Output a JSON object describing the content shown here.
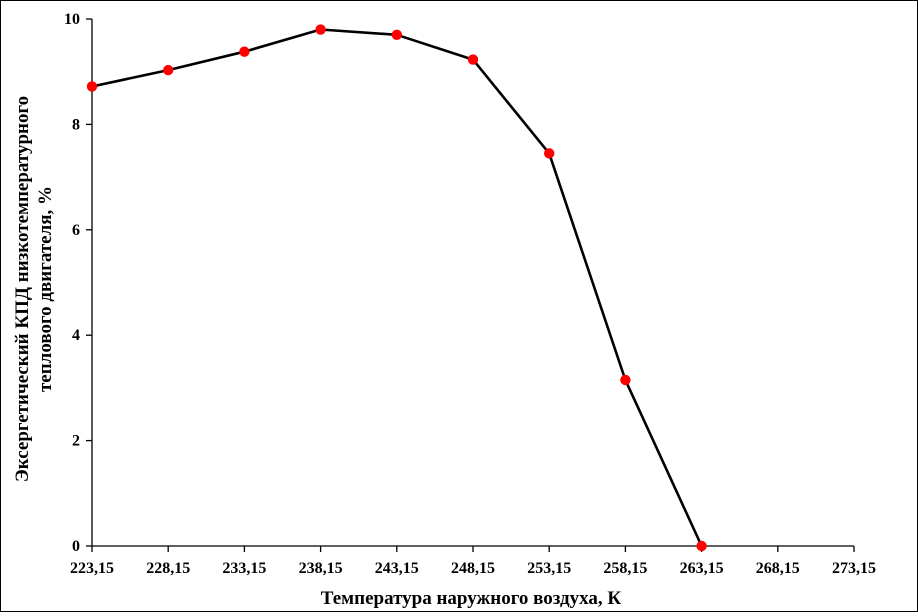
{
  "chart_data": {
    "type": "line",
    "title": "",
    "xlabel": "Температура наружного воздуха, К",
    "ylabel_lines": [
      "Эксергетический КПД низкотемпературного",
      "теплового двигателя, %"
    ],
    "x_ticks": [
      "223,15",
      "228,15",
      "233,15",
      "238,15",
      "243,15",
      "248,15",
      "253,15",
      "258,15",
      "263,15",
      "268,15",
      "273,15"
    ],
    "x_tick_values": [
      223.15,
      228.15,
      233.15,
      238.15,
      243.15,
      248.15,
      253.15,
      258.15,
      263.15,
      268.15,
      273.15
    ],
    "y_ticks": [
      "0",
      "2",
      "4",
      "6",
      "8",
      "10"
    ],
    "y_tick_values": [
      0,
      2,
      4,
      6,
      8,
      10
    ],
    "xlim": [
      223.15,
      273.15
    ],
    "ylim": [
      0,
      10
    ],
    "grid": false,
    "series": [
      {
        "x": [
          223.15,
          228.15,
          233.15,
          238.15,
          243.15,
          248.15,
          253.15,
          258.15,
          263.15
        ],
        "y": [
          8.72,
          9.03,
          9.38,
          9.8,
          9.7,
          9.23,
          7.45,
          3.15,
          0.0
        ],
        "line_color": "#000000",
        "marker_color": "#ff0000"
      }
    ]
  }
}
